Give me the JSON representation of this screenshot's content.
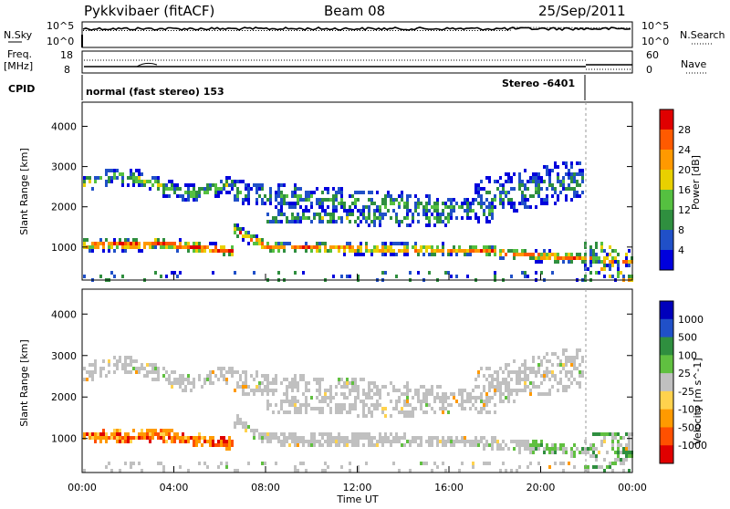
{
  "header": {
    "station": "Pykkvibaer (fitACF)",
    "beam": "Beam 08",
    "date": "25/Sep/2011"
  },
  "status_panel": {
    "nsky_label": "N.Sky",
    "nsearch_label": "N.Search",
    "freq_label_line1": "Freq.",
    "freq_label_line2": "[MHz]",
    "nave_label": "Nave",
    "cpid_label": "CPID",
    "noise_ticks_left": [
      "10^5",
      "10^0"
    ],
    "noise_ticks_right": [
      "10^5",
      "10^0"
    ],
    "freq_ticks": [
      "18",
      "8"
    ],
    "nave_ticks": [
      "60",
      "0"
    ],
    "cpid_mode_1": "normal (fast stereo) 153",
    "cpid_mode_2": "Stereo -6401"
  },
  "colors": {
    "power": [
      "#0000dd",
      "#2050c8",
      "#2f8f3f",
      "#55c040",
      "#e8d000",
      "#ff9900",
      "#ff5a00",
      "#e00000"
    ],
    "velocity": [
      "#e00000",
      "#ff5000",
      "#ff9a00",
      "#ffd24d",
      "#c0c0c0",
      "#60c040",
      "#2f8f3f",
      "#2050c8",
      "#0000bb"
    ]
  },
  "chart_data": [
    {
      "type": "heatmap",
      "title": "",
      "xlabel": "",
      "ylabel": "Slant Range [km]",
      "xlim": [
        "00:00",
        "00:00"
      ],
      "x_ticks": [
        "00:00",
        "04:00",
        "08:00",
        "12:00",
        "16:00",
        "20:00",
        "00:00"
      ],
      "y_ticks": [
        1000,
        2000,
        3000,
        4000
      ],
      "ylim": [
        180,
        4600
      ],
      "colorbar": {
        "label": "Power [dB]",
        "ticks": [
          4,
          8,
          12,
          16,
          20,
          24,
          28
        ],
        "range": [
          0,
          30
        ]
      },
      "grid": false
    },
    {
      "type": "heatmap",
      "title": "",
      "xlabel": "Time UT",
      "ylabel": "Slant Range [km]",
      "xlim": [
        "00:00",
        "00:00"
      ],
      "x_ticks": [
        "00:00",
        "04:00",
        "08:00",
        "12:00",
        "16:00",
        "20:00",
        "00:00"
      ],
      "y_ticks": [
        1000,
        2000,
        3000,
        4000
      ],
      "ylim": [
        180,
        4600
      ],
      "colorbar": {
        "label": "Velocity [m s^-1]",
        "ticks": [
          "1000",
          "500",
          "100",
          "25",
          "-25",
          "-100",
          "-500",
          "-1000"
        ]
      },
      "grid": false
    }
  ]
}
